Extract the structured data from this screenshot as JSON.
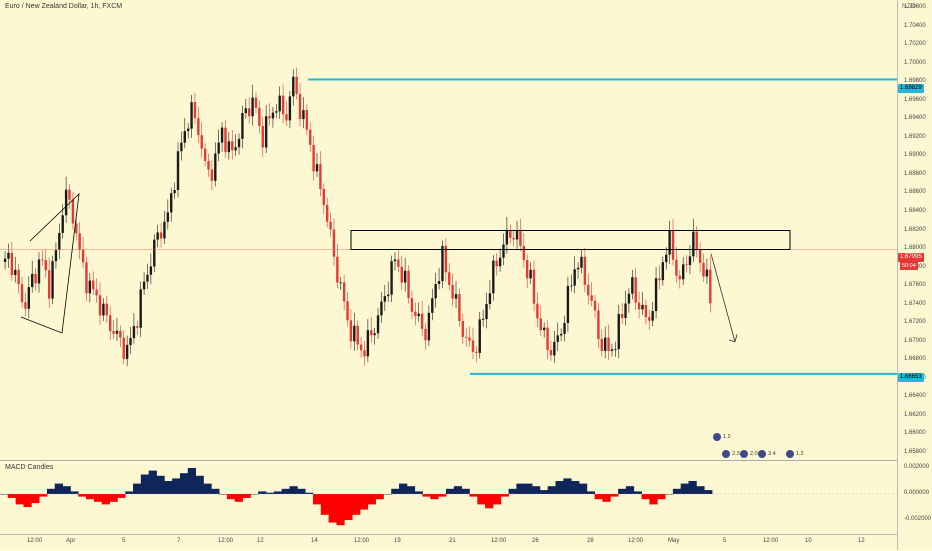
{
  "header": {
    "title": "Euro / New Zealand Dollar, 1h, FXCM",
    "currency": "NZD"
  },
  "price_axis": {
    "ticks": [
      "1.70600",
      "1.70400",
      "1.70200",
      "1.70000",
      "1.69800",
      "1.69600",
      "1.69400",
      "1.69200",
      "1.69000",
      "1.68800",
      "1.68600",
      "1.68400",
      "1.68200",
      "1.68000",
      "1.67800",
      "1.67600",
      "1.67400",
      "1.67200",
      "1.67000",
      "1.66800",
      "1.66600",
      "1.66400",
      "1.66200",
      "1.66000",
      "1.65800"
    ],
    "badges": {
      "resistance": "1.69829",
      "last_price": "1.67995",
      "countdown": "50:04",
      "support": "1.66653"
    }
  },
  "macd": {
    "label": "MACD Candles",
    "ticks": [
      "0.002000",
      "0.000000",
      "-0.002000"
    ]
  },
  "time_axis": {
    "ticks": [
      "12:00",
      "Apr",
      "5",
      "7",
      "12:00",
      "12",
      "14",
      "12:00",
      "19",
      "21",
      "12:00",
      "26",
      "28",
      "12:00",
      "May",
      "5",
      "12:00",
      "10",
      "12"
    ]
  },
  "events": {
    "labels": [
      "1.2",
      "2.3",
      "2.0",
      "3.4",
      "1.2"
    ]
  },
  "colors": {
    "background": "#fdf8d2",
    "up_candle": "#1a1a1a",
    "down_candle": "#e53935",
    "level_line": "#27b4d8",
    "macd_positive": "#10265a",
    "macd_negative": "#ff0000"
  },
  "chart_data": {
    "type": "candlestick",
    "symbol": "EURNZD",
    "timeframe": "1h",
    "levels": {
      "resistance": 1.69829,
      "support": 1.66653,
      "current": 1.67995
    },
    "range_box": [
      1.67995,
      1.682
    ],
    "price_path": [
      1.678,
      1.6795,
      1.676,
      1.674,
      1.677,
      1.679,
      1.676,
      1.68,
      1.686,
      1.684,
      1.679,
      1.676,
      1.675,
      1.673,
      1.6715,
      1.67,
      1.669,
      1.672,
      1.676,
      1.679,
      1.682,
      1.683,
      1.688,
      1.692,
      1.695,
      1.693,
      1.688,
      1.689,
      1.693,
      1.69,
      1.692,
      1.695,
      1.696,
      1.692,
      1.694,
      1.696,
      1.694,
      1.698,
      1.695,
      1.692,
      1.688,
      1.685,
      1.68,
      1.676,
      1.672,
      1.67,
      1.669,
      1.671,
      1.673,
      1.676,
      1.679,
      1.677,
      1.674,
      1.672,
      1.671,
      1.676,
      1.679,
      1.676,
      1.673,
      1.67,
      1.669,
      1.672,
      1.676,
      1.679,
      1.681,
      1.682,
      1.68,
      1.677,
      1.673,
      1.67,
      1.669,
      1.671,
      1.675,
      1.679,
      1.677,
      1.674,
      1.67,
      1.669,
      1.67,
      1.674,
      1.676,
      1.674,
      1.672,
      1.675,
      1.679,
      1.681,
      1.676,
      1.679,
      1.681,
      1.678,
      1.675
    ],
    "macd_hist": [
      0.0,
      -0.0003,
      -0.0008,
      -0.001,
      -0.0007,
      -0.0002,
      0.0004,
      0.0008,
      0.0006,
      0.0002,
      -0.0002,
      -0.0004,
      -0.0006,
      -0.0008,
      -0.0006,
      -0.0003,
      0.0002,
      0.0008,
      0.0015,
      0.0018,
      0.0014,
      0.001,
      0.0012,
      0.0016,
      0.002,
      0.0014,
      0.0008,
      0.0004,
      0.0,
      -0.0004,
      -0.0006,
      -0.0003,
      0.0,
      0.0002,
      0.0001,
      0.0002,
      0.0004,
      0.0006,
      0.0004,
      0.0001,
      -0.0008,
      -0.0016,
      -0.0022,
      -0.0024,
      -0.002,
      -0.0016,
      -0.0012,
      -0.0008,
      -0.0004,
      0.0,
      0.0004,
      0.0008,
      0.0006,
      0.0002,
      -0.0002,
      -0.0004,
      -0.0002,
      0.0004,
      0.0006,
      0.0004,
      -0.0002,
      -0.0008,
      -0.0011,
      -0.0008,
      -0.0002,
      0.0004,
      0.0008,
      0.0008,
      0.0006,
      0.0003,
      0.0006,
      0.001,
      0.0012,
      0.001,
      0.0008,
      0.0002,
      -0.0004,
      -0.0006,
      -0.0002,
      0.0004,
      0.0006,
      0.0002,
      -0.0004,
      -0.0008,
      -0.0004,
      0.0,
      0.0004,
      0.0008,
      0.001,
      0.0006,
      0.0003
    ]
  }
}
